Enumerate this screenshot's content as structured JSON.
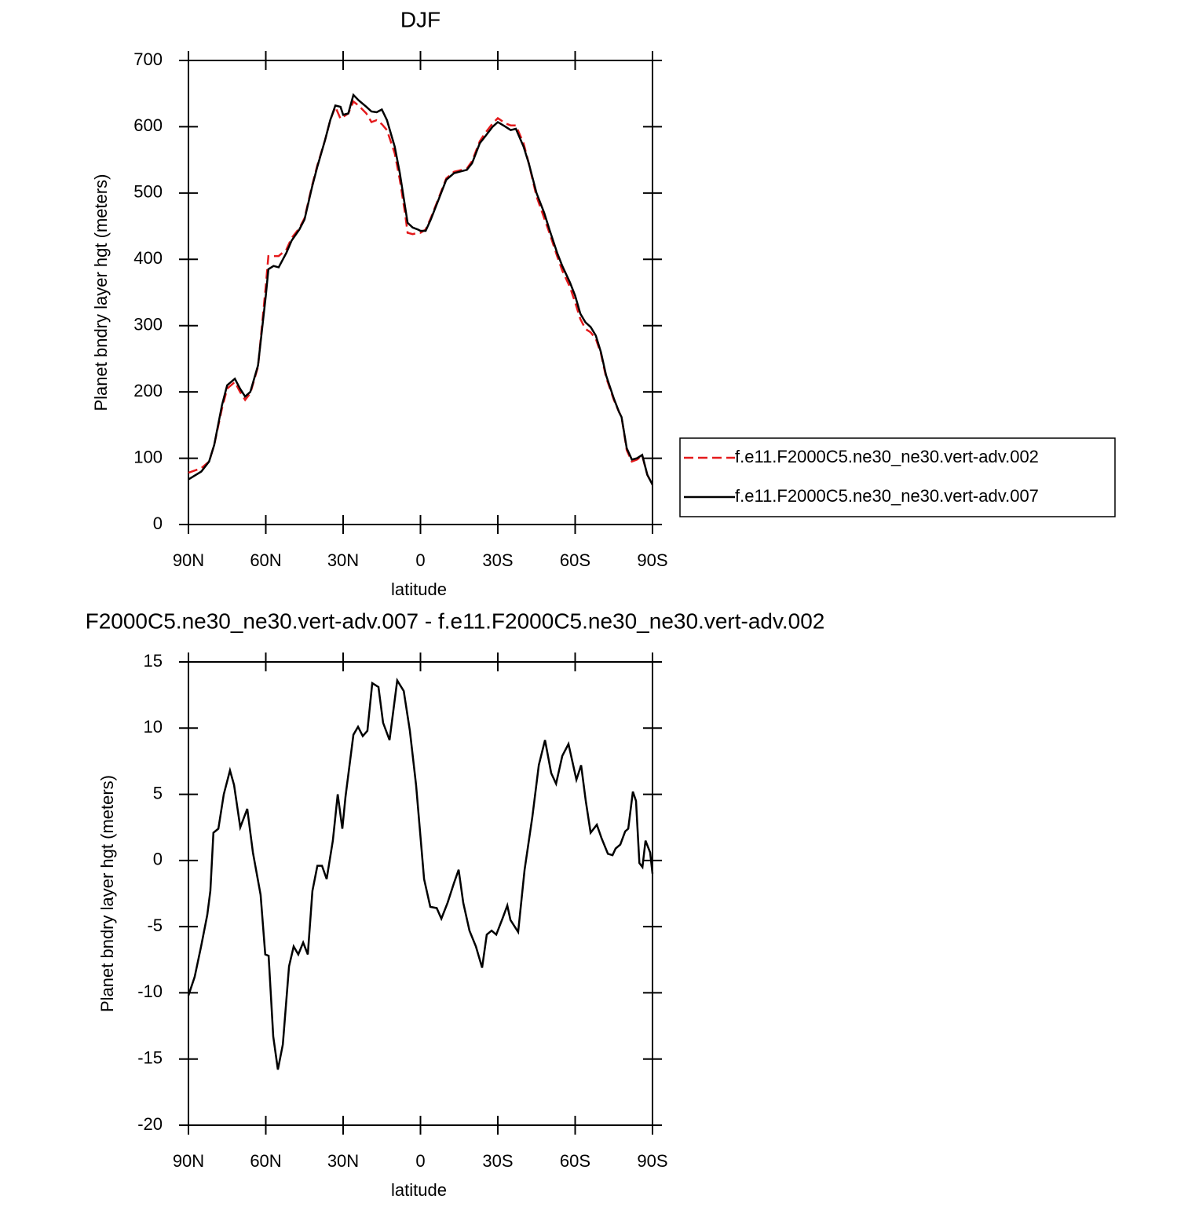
{
  "chart_data": [
    {
      "type": "line",
      "title": "DJF",
      "xlabel": "latitude",
      "ylabel": "Planet bndry layer hgt (meters)",
      "x": [
        90,
        85,
        82,
        80,
        77,
        75,
        72,
        70,
        68,
        66,
        63,
        60,
        59,
        57,
        55,
        52,
        50,
        47,
        45,
        42,
        40,
        37,
        35,
        33,
        31,
        30,
        28,
        26,
        24,
        21,
        19,
        17,
        15,
        13,
        10,
        8,
        6,
        5,
        3,
        1,
        0,
        -2,
        -4,
        -7,
        -10,
        -13,
        -15,
        -18,
        -20,
        -23,
        -25,
        -28,
        -30,
        -33,
        -35,
        -37,
        -40,
        -42,
        -45,
        -48,
        -50,
        -53,
        -55,
        -58,
        -60,
        -62,
        -64,
        -66,
        -68,
        -70,
        -72,
        -75,
        -77,
        -78,
        -80,
        -82,
        -84,
        -86,
        -88,
        -90
      ],
      "series": [
        {
          "name": "f.e11.F2000C5.ne30_ne30.vert-adv.002",
          "color": "#e41a1c",
          "style": "dashed",
          "values": [
            78,
            85,
            95,
            120,
            175,
            205,
            215,
            200,
            188,
            198,
            238,
            360,
            405,
            405,
            405,
            415,
            432,
            447,
            462,
            512,
            542,
            580,
            610,
            630,
            612,
            615,
            620,
            638,
            632,
            620,
            607,
            610,
            604,
            595,
            560,
            520,
            470,
            440,
            438,
            440,
            440,
            445,
            462,
            492,
            522,
            532,
            534,
            537,
            548,
            578,
            590,
            605,
            613,
            605,
            602,
            602,
            575,
            545,
            495,
            462,
            440,
            405,
            383,
            358,
            335,
            310,
            295,
            290,
            280,
            258,
            222,
            188,
            170,
            162,
            112,
            95,
            98,
            104,
            75,
            60
          ]
        },
        {
          "name": "f.e11.F2000C5.ne30_ne30.vert-adv.007",
          "color": "#000000",
          "style": "solid",
          "values": [
            68,
            80,
            95,
            120,
            180,
            210,
            220,
            205,
            193,
            200,
            240,
            345,
            385,
            390,
            388,
            410,
            428,
            445,
            460,
            510,
            540,
            580,
            610,
            632,
            630,
            618,
            620,
            648,
            640,
            630,
            623,
            622,
            626,
            610,
            570,
            530,
            480,
            455,
            448,
            445,
            443,
            443,
            460,
            490,
            520,
            530,
            532,
            535,
            545,
            575,
            585,
            600,
            607,
            600,
            595,
            597,
            570,
            545,
            500,
            470,
            445,
            410,
            390,
            365,
            345,
            318,
            305,
            298,
            285,
            260,
            225,
            190,
            170,
            162,
            115,
            98,
            100,
            105,
            75,
            60
          ]
        }
      ],
      "xlim": [
        90,
        -90
      ],
      "xticks": [
        {
          "value": 90,
          "label": "90N"
        },
        {
          "value": 60,
          "label": "60N"
        },
        {
          "value": 30,
          "label": "30N"
        },
        0,
        {
          "value": -30,
          "label": "30S"
        },
        {
          "value": -60,
          "label": "60S"
        },
        {
          "value": -90,
          "label": "90S"
        }
      ],
      "ylim": [
        0,
        700
      ],
      "yticks": [
        0,
        100,
        200,
        300,
        400,
        500,
        600,
        700
      ],
      "legend": "right"
    },
    {
      "type": "line",
      "title": "F2000C5.ne30_ne30.vert-adv.007 - f.e11.F2000C5.ne30_ne30.vert-adv.002",
      "xlabel": "latitude",
      "ylabel": "Planet bndry layer hgt (meters)",
      "x": [
        90,
        87.6,
        85.1,
        82.7,
        81.5,
        80.3,
        78.4,
        76.3,
        73.9,
        72.3,
        69.9,
        67.2,
        65.0,
        62.0,
        60.2,
        58.9,
        57.1,
        55.3,
        53.4,
        51.0,
        49.2,
        47.4,
        45.5,
        43.7,
        41.9,
        40.0,
        38.2,
        36.4,
        34.0,
        32.1,
        30.3,
        29.1,
        26.0,
        24.2,
        22.4,
        20.6,
        18.7,
        16.3,
        14.5,
        12.0,
        9.0,
        6.5,
        4.1,
        1.7,
        -1.4,
        -3.8,
        -6.3,
        -8.1,
        -10.5,
        -13.0,
        -14.8,
        -16.6,
        -19.0,
        -21.5,
        -23.9,
        -25.7,
        -27.6,
        -29.4,
        -31.8,
        -33.7,
        -34.9,
        -37.9,
        -40.4,
        -43.4,
        -45.9,
        -48.3,
        -50.7,
        -52.6,
        -55.0,
        -57.4,
        -60.5,
        -62.3,
        -64.1,
        -66.0,
        -68.4,
        -70.2,
        -72.7,
        -74.5,
        -75.7,
        -77.5,
        -79.4,
        -80.6,
        -82.4,
        -83.6,
        -84.9,
        -86.1,
        -87.3,
        -89.1,
        -90
      ],
      "series": [
        {
          "color": "#000000",
          "style": "solid",
          "values": [
            -10.2,
            -8.8,
            -6.5,
            -4.1,
            -2.3,
            2.1,
            2.4,
            5.0,
            6.8,
            5.7,
            2.5,
            3.9,
            0.6,
            -2.6,
            -7.1,
            -7.2,
            -13.3,
            -15.8,
            -13.9,
            -8.0,
            -6.5,
            -7.1,
            -6.2,
            -7.1,
            -2.3,
            -0.4,
            -0.4,
            -1.4,
            1.5,
            5.0,
            2.4,
            4.8,
            9.5,
            10.1,
            9.4,
            9.8,
            13.4,
            13.1,
            10.4,
            9.1,
            13.6,
            12.8,
            9.8,
            5.7,
            -1.4,
            -3.5,
            -3.6,
            -4.4,
            -3.2,
            -1.7,
            -0.7,
            -3.2,
            -5.3,
            -6.5,
            -8.1,
            -5.6,
            -5.3,
            -5.6,
            -4.4,
            -3.4,
            -4.5,
            -5.4,
            -0.7,
            3.3,
            7.2,
            9.1,
            6.6,
            5.8,
            7.9,
            8.8,
            6.1,
            7.2,
            4.5,
            2.1,
            2.7,
            1.7,
            0.5,
            0.4,
            0.9,
            1.2,
            2.2,
            2.4,
            5.2,
            4.5,
            -0.2,
            -0.5,
            1.5,
            0.6,
            -1.0
          ]
        }
      ],
      "xlim": [
        90,
        -90
      ],
      "xticks": [
        {
          "value": 90,
          "label": "90N"
        },
        {
          "value": 60,
          "label": "60N"
        },
        {
          "value": 30,
          "label": "30N"
        },
        0,
        {
          "value": -30,
          "label": "30S"
        },
        {
          "value": -60,
          "label": "60S"
        },
        {
          "value": -90,
          "label": "90S"
        }
      ],
      "ylim": [
        -20,
        15
      ],
      "yticks": [
        -20,
        -15,
        -10,
        -5,
        0,
        5,
        10,
        15
      ]
    }
  ]
}
